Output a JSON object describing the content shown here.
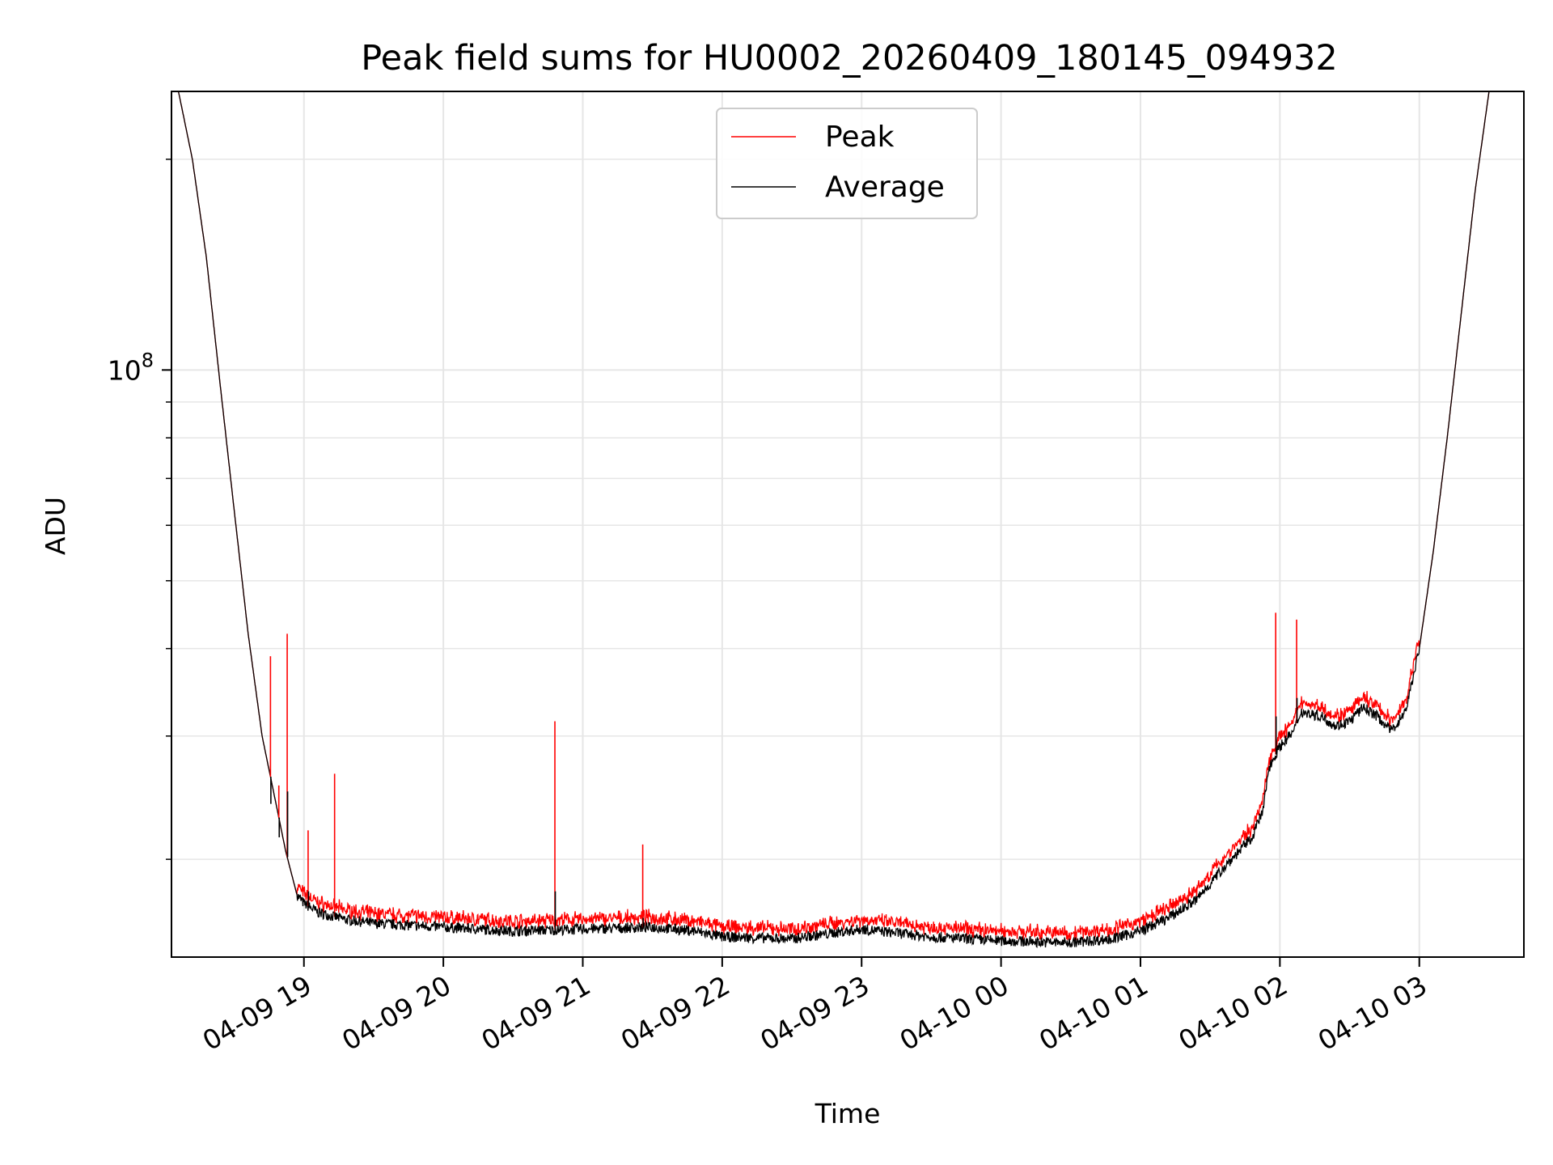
{
  "chart_data": {
    "type": "line",
    "title": "Peak field sums for HU0002_20260409_180145_094932",
    "xlabel": "Time",
    "ylabel": "ADU",
    "y_scale": "log",
    "ylim": [
      14500000,
      250000000
    ],
    "xlim_hours": [
      18.05,
      27.75
    ],
    "grid": true,
    "legend_position": "upper-center",
    "x_ticks": [
      {
        "label": "04-09 19",
        "hour": 19
      },
      {
        "label": "04-09 20",
        "hour": 20
      },
      {
        "label": "04-09 21",
        "hour": 21
      },
      {
        "label": "04-09 22",
        "hour": 22
      },
      {
        "label": "04-09 23",
        "hour": 23
      },
      {
        "label": "04-10 00",
        "hour": 24
      },
      {
        "label": "04-10 01",
        "hour": 25
      },
      {
        "label": "04-10 02",
        "hour": 26
      },
      {
        "label": "04-10 03",
        "hour": 27
      }
    ],
    "y_major_ticks": [
      {
        "base": "10",
        "exponent": "8",
        "value": 100000000
      }
    ],
    "y_minor_tick_values": [
      20000000,
      30000000,
      40000000,
      50000000,
      60000000,
      70000000,
      80000000,
      90000000,
      200000000
    ],
    "series": [
      {
        "name": "Peak",
        "color": "#ff0000"
      },
      {
        "name": "Average",
        "color": "#000000"
      }
    ],
    "average_curve": [
      [
        18.1,
        250000000
      ],
      [
        18.2,
        200000000
      ],
      [
        18.3,
        145000000
      ],
      [
        18.4,
        95000000
      ],
      [
        18.5,
        63000000
      ],
      [
        18.6,
        42000000
      ],
      [
        18.7,
        30000000
      ],
      [
        18.8,
        24000000
      ],
      [
        18.87,
        20500000
      ],
      [
        18.95,
        17800000
      ],
      [
        19.0,
        17300000
      ],
      [
        19.1,
        16800000
      ],
      [
        19.3,
        16400000
      ],
      [
        19.5,
        16200000
      ],
      [
        20.0,
        16000000
      ],
      [
        20.5,
        15800000
      ],
      [
        21.0,
        15900000
      ],
      [
        21.5,
        16000000
      ],
      [
        21.8,
        15800000
      ],
      [
        22.0,
        15500000
      ],
      [
        22.5,
        15400000
      ],
      [
        23.0,
        15900000
      ],
      [
        23.5,
        15500000
      ],
      [
        24.0,
        15300000
      ],
      [
        24.5,
        15200000
      ],
      [
        24.8,
        15400000
      ],
      [
        25.0,
        15800000
      ],
      [
        25.2,
        16500000
      ],
      [
        25.4,
        17500000
      ],
      [
        25.6,
        19500000
      ],
      [
        25.8,
        21500000
      ],
      [
        25.88,
        23500000
      ],
      [
        25.92,
        27000000
      ],
      [
        26.0,
        29000000
      ],
      [
        26.1,
        30500000
      ],
      [
        26.15,
        32500000
      ],
      [
        26.3,
        32000000
      ],
      [
        26.4,
        31000000
      ],
      [
        26.5,
        31500000
      ],
      [
        26.6,
        33000000
      ],
      [
        26.7,
        32000000
      ],
      [
        26.8,
        30500000
      ],
      [
        26.9,
        32500000
      ],
      [
        27.0,
        40000000
      ],
      [
        27.1,
        55000000
      ],
      [
        27.2,
        80000000
      ],
      [
        27.3,
        120000000
      ],
      [
        27.4,
        180000000
      ],
      [
        27.5,
        250000000
      ]
    ],
    "peak_offset_ratio": 1.02,
    "peak_spikes": [
      {
        "hour": 18.76,
        "peak": 39000000,
        "average": 24000000
      },
      {
        "hour": 18.82,
        "peak": 25500000,
        "average": 21500000
      },
      {
        "hour": 18.88,
        "peak": 42000000,
        "average": 25000000
      },
      {
        "hour": 19.03,
        "peak": 22000000,
        "average": 18000000
      },
      {
        "hour": 19.22,
        "peak": 26500000,
        "average": 16800000
      },
      {
        "hour": 20.8,
        "peak": 31500000,
        "average": 18000000
      },
      {
        "hour": 21.43,
        "peak": 21000000,
        "average": 16500000
      },
      {
        "hour": 25.97,
        "peak": 45000000,
        "average": 32000000
      },
      {
        "hour": 26.12,
        "peak": 44000000,
        "average": 34000000
      }
    ]
  }
}
